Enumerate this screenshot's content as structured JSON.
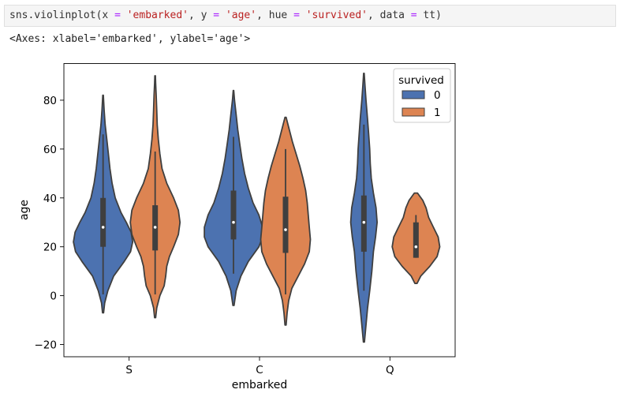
{
  "code": {
    "fn": "sns.violinplot(",
    "kw1": "x ",
    "eq1": "=",
    "v1": " 'embarked'",
    "sep1": ", ",
    "kw2": "y ",
    "eq2": "=",
    "v2": " 'age'",
    "sep2": ", ",
    "kw3": "hue ",
    "eq3": "=",
    "v3": " 'survived'",
    "sep3": ", ",
    "kw4": "data ",
    "eq4": "=",
    "v4": " tt)"
  },
  "output_text": "<Axes: xlabel='embarked', ylabel='age'>",
  "colors": {
    "survived_0": "#4c72b0",
    "survived_1": "#dd8452",
    "edge": "#3f3f3f"
  },
  "chart_data": {
    "type": "violin",
    "xlabel": "embarked",
    "ylabel": "age",
    "ylim": [
      -25,
      95
    ],
    "yticks": [
      -20,
      0,
      20,
      40,
      60,
      80
    ],
    "categories": [
      "S",
      "C",
      "Q"
    ],
    "legend": {
      "title": "survived",
      "placement": "top-right"
    },
    "series": [
      {
        "name": "0",
        "color": "#4c72b0",
        "violins": [
          {
            "category": "S",
            "min": -7,
            "max": 82,
            "q1": 20,
            "median": 28,
            "q3": 40,
            "whisker_low": 0.5,
            "whisker_high": 66,
            "profile": [
              [
                -7,
                0.01
              ],
              [
                -3,
                0.03
              ],
              [
                2,
                0.09
              ],
              [
                8,
                0.2
              ],
              [
                14,
                0.4
              ],
              [
                18,
                0.52
              ],
              [
                22,
                0.56
              ],
              [
                26,
                0.53
              ],
              [
                30,
                0.44
              ],
              [
                34,
                0.34
              ],
              [
                40,
                0.23
              ],
              [
                46,
                0.17
              ],
              [
                52,
                0.13
              ],
              [
                58,
                0.1
              ],
              [
                64,
                0.07
              ],
              [
                70,
                0.04
              ],
              [
                76,
                0.02
              ],
              [
                82,
                0.005
              ]
            ]
          },
          {
            "category": "C",
            "min": -4,
            "max": 84,
            "q1": 23,
            "median": 30,
            "q3": 43,
            "whisker_low": 9,
            "whisker_high": 65,
            "profile": [
              [
                -4,
                0.01
              ],
              [
                2,
                0.05
              ],
              [
                8,
                0.14
              ],
              [
                14,
                0.28
              ],
              [
                20,
                0.48
              ],
              [
                24,
                0.55
              ],
              [
                28,
                0.55
              ],
              [
                33,
                0.48
              ],
              [
                38,
                0.37
              ],
              [
                44,
                0.28
              ],
              [
                50,
                0.21
              ],
              [
                56,
                0.16
              ],
              [
                62,
                0.12
              ],
              [
                68,
                0.08
              ],
              [
                74,
                0.05
              ],
              [
                80,
                0.02
              ],
              [
                84,
                0.005
              ]
            ]
          },
          {
            "category": "Q",
            "min": -19,
            "max": 91,
            "q1": 18,
            "median": 30,
            "q3": 41,
            "whisker_low": 2,
            "whisker_high": 70,
            "profile": [
              [
                -19,
                0.01
              ],
              [
                -12,
                0.04
              ],
              [
                -5,
                0.07
              ],
              [
                2,
                0.11
              ],
              [
                10,
                0.15
              ],
              [
                18,
                0.18
              ],
              [
                24,
                0.22
              ],
              [
                30,
                0.25
              ],
              [
                36,
                0.23
              ],
              [
                42,
                0.18
              ],
              [
                48,
                0.14
              ],
              [
                54,
                0.12
              ],
              [
                60,
                0.11
              ],
              [
                66,
                0.09
              ],
              [
                72,
                0.07
              ],
              [
                80,
                0.04
              ],
              [
                86,
                0.02
              ],
              [
                91,
                0.005
              ]
            ]
          }
        ]
      },
      {
        "name": "1",
        "color": "#dd8452",
        "violins": [
          {
            "category": "S",
            "min": -9,
            "max": 90,
            "q1": 18.5,
            "median": 28,
            "q3": 37,
            "whisker_low": 0.5,
            "whisker_high": 59,
            "profile": [
              [
                -9,
                0.01
              ],
              [
                -5,
                0.03
              ],
              [
                0,
                0.09
              ],
              [
                4,
                0.17
              ],
              [
                8,
                0.2
              ],
              [
                12,
                0.22
              ],
              [
                16,
                0.27
              ],
              [
                20,
                0.35
              ],
              [
                25,
                0.44
              ],
              [
                30,
                0.47
              ],
              [
                35,
                0.44
              ],
              [
                40,
                0.35
              ],
              [
                46,
                0.22
              ],
              [
                52,
                0.13
              ],
              [
                58,
                0.09
              ],
              [
                64,
                0.06
              ],
              [
                70,
                0.04
              ],
              [
                76,
                0.03
              ],
              [
                82,
                0.02
              ],
              [
                87,
                0.01
              ],
              [
                90,
                0.005
              ]
            ]
          },
          {
            "category": "C",
            "min": -12,
            "max": 73,
            "q1": 17.5,
            "median": 27,
            "q3": 40.5,
            "whisker_low": 0.5,
            "whisker_high": 60,
            "profile": [
              [
                -12,
                0.01
              ],
              [
                -7,
                0.03
              ],
              [
                -2,
                0.06
              ],
              [
                3,
                0.12
              ],
              [
                8,
                0.24
              ],
              [
                13,
                0.36
              ],
              [
                18,
                0.45
              ],
              [
                23,
                0.47
              ],
              [
                28,
                0.45
              ],
              [
                33,
                0.43
              ],
              [
                38,
                0.41
              ],
              [
                43,
                0.38
              ],
              [
                48,
                0.33
              ],
              [
                53,
                0.27
              ],
              [
                58,
                0.2
              ],
              [
                63,
                0.13
              ],
              [
                68,
                0.07
              ],
              [
                73,
                0.01
              ]
            ]
          },
          {
            "category": "Q",
            "min": 5,
            "max": 42,
            "q1": 15.5,
            "median": 20,
            "q3": 30,
            "whisker_low": 15.5,
            "whisker_high": 33,
            "profile": [
              [
                5,
                0.02
              ],
              [
                8,
                0.09
              ],
              [
                12,
                0.26
              ],
              [
                16,
                0.4
              ],
              [
                20,
                0.45
              ],
              [
                24,
                0.42
              ],
              [
                28,
                0.33
              ],
              [
                32,
                0.24
              ],
              [
                36,
                0.19
              ],
              [
                39,
                0.13
              ],
              [
                42,
                0.03
              ]
            ]
          }
        ]
      }
    ]
  }
}
